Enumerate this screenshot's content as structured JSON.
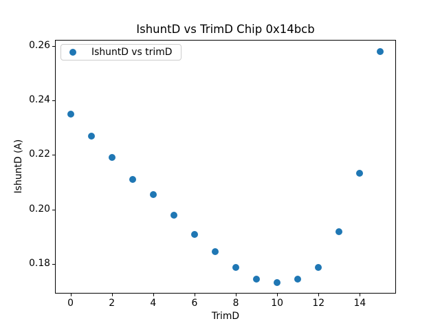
{
  "figure": {
    "background": "#ffffff",
    "frame_color": "#000000",
    "text_color": "#000000"
  },
  "chart_data": {
    "type": "scatter",
    "title": "IshuntD vs TrimD Chip 0x14bcb",
    "xlabel": "TrimD",
    "ylabel": "IshuntD (A)",
    "grid": false,
    "legend": {
      "position": "upper left",
      "entries": [
        {
          "label": "IshuntD vs trimD",
          "marker": "dot",
          "marker_color": "#1f77b4"
        }
      ]
    },
    "series": [
      {
        "name": "IshuntD vs trimD",
        "color": "#1f77b4",
        "marker_diameter_px": 10,
        "x": [
          0,
          1,
          2,
          3,
          4,
          5,
          6,
          7,
          8,
          9,
          10,
          11,
          12,
          13,
          14,
          15
        ],
        "y": [
          0.235,
          0.2268,
          0.219,
          0.211,
          0.2055,
          0.198,
          0.1908,
          0.1844,
          0.1786,
          0.1745,
          0.1731,
          0.1745,
          0.1788,
          0.1917,
          0.2134,
          0.258
        ]
      }
    ],
    "xlim": [
      -0.75,
      15.75
    ],
    "ylim": [
      0.1691,
      0.2624
    ],
    "xticks": {
      "values": [
        0,
        2,
        4,
        6,
        8,
        10,
        12,
        14
      ],
      "labels": [
        "0",
        "2",
        "4",
        "6",
        "8",
        "10",
        "12",
        "14"
      ]
    },
    "yticks": {
      "values": [
        0.18,
        0.2,
        0.22,
        0.24,
        0.26
      ],
      "labels": [
        "0.18",
        "0.20",
        "0.22",
        "0.24",
        "0.26"
      ]
    }
  }
}
